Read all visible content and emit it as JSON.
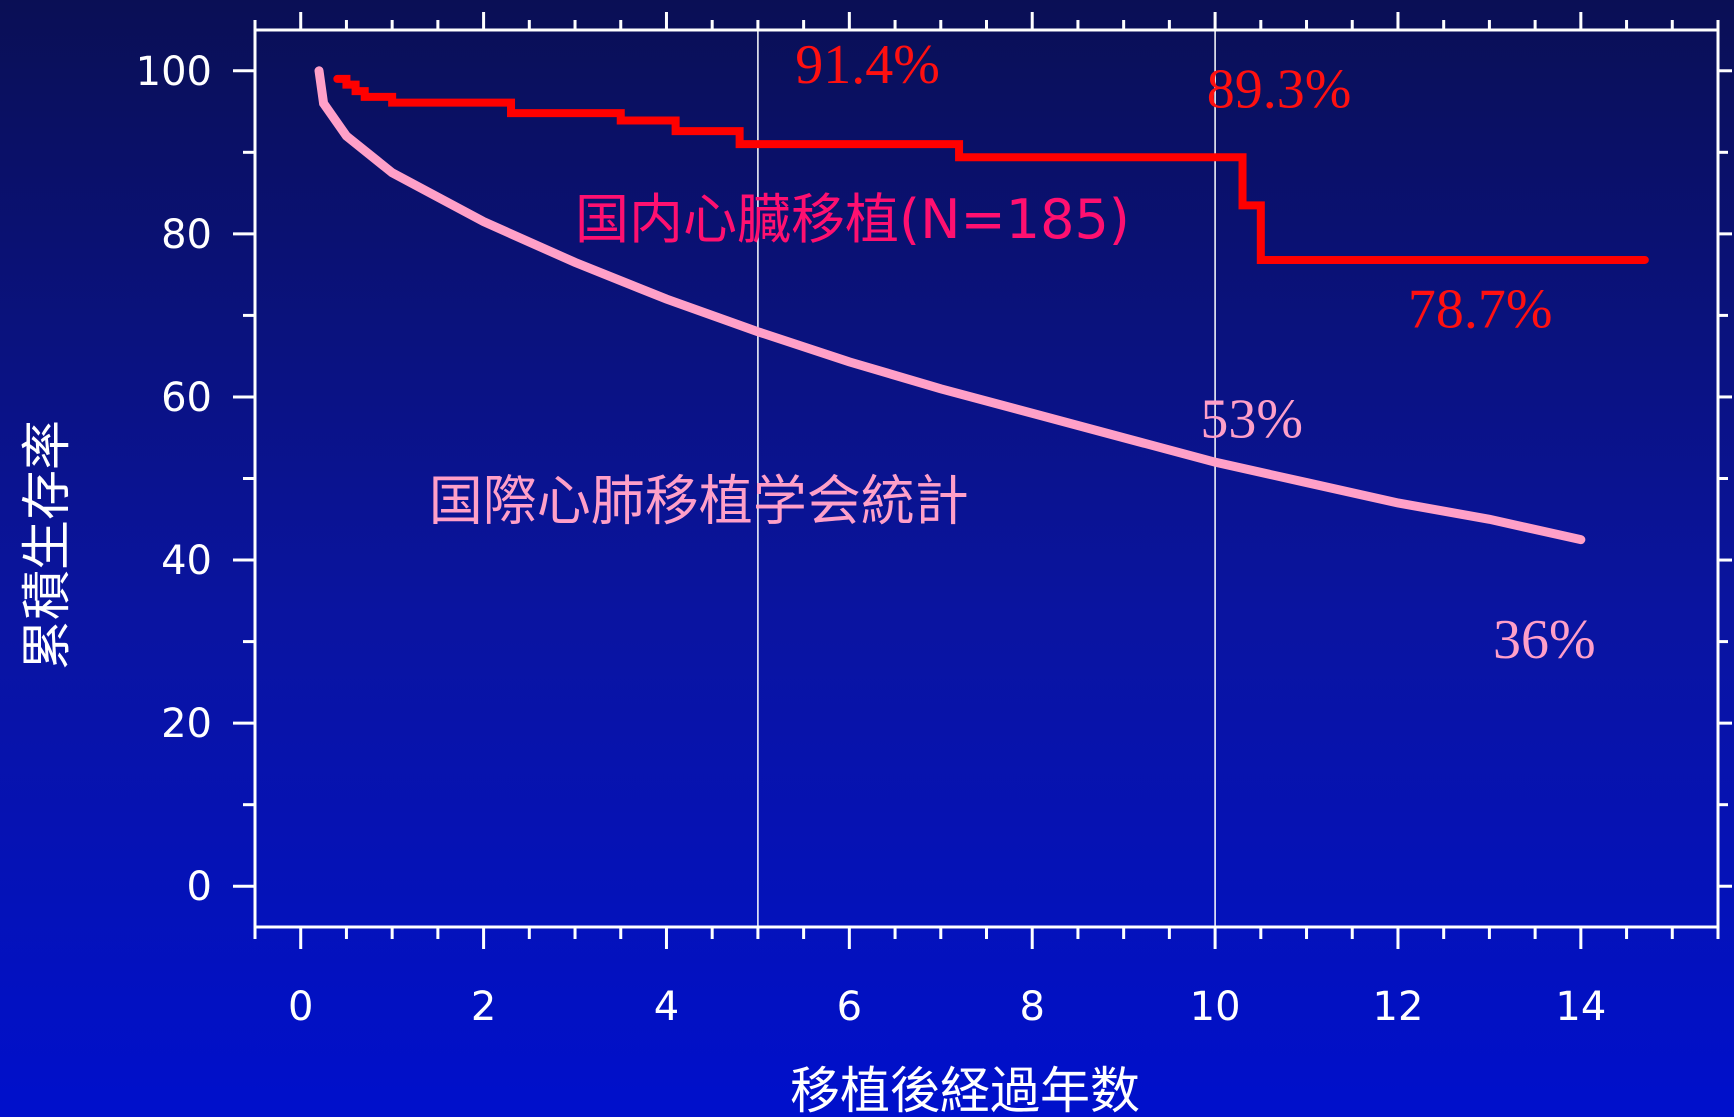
{
  "chart_data": {
    "type": "line",
    "xlabel": "移植後経過年数",
    "ylabel": "累積生存率",
    "xlim": [
      -0.5,
      15.5
    ],
    "ylim": [
      -5,
      105
    ],
    "x_ticks": [
      "0",
      "2",
      "4",
      "6",
      "8",
      "10",
      "12",
      "14"
    ],
    "y_ticks": [
      "0",
      "20",
      "40",
      "60",
      "80",
      "100"
    ],
    "reference_lines_x": [
      5,
      10
    ],
    "grid": false,
    "series": [
      {
        "name": "国内心臓移植(N=185)",
        "color": "#ff0000",
        "step": true,
        "points": [
          [
            0.4,
            99
          ],
          [
            0.5,
            98.3
          ],
          [
            0.6,
            97.5
          ],
          [
            0.7,
            96.8
          ],
          [
            1.0,
            96.1
          ],
          [
            2.3,
            94.8
          ],
          [
            3.5,
            93.9
          ],
          [
            4.1,
            92.6
          ],
          [
            4.8,
            91.0
          ],
          [
            7.2,
            89.4
          ],
          [
            10.3,
            83.5
          ],
          [
            10.5,
            76.8
          ],
          [
            14.7,
            76.8
          ]
        ]
      },
      {
        "name": "国際心肺移植学会統計",
        "color": "#ffa0c8",
        "step": false,
        "points": [
          [
            0.2,
            100
          ],
          [
            0.25,
            96
          ],
          [
            0.5,
            92
          ],
          [
            1.0,
            87.5
          ],
          [
            2.0,
            81.5
          ],
          [
            3.0,
            76.5
          ],
          [
            4.0,
            72
          ],
          [
            5.0,
            68
          ],
          [
            6.0,
            64.3
          ],
          [
            7.0,
            61
          ],
          [
            8.0,
            58
          ],
          [
            9.0,
            55
          ],
          [
            10.0,
            52
          ],
          [
            11.0,
            49.5
          ],
          [
            12.0,
            47
          ],
          [
            13.0,
            45
          ],
          [
            14.0,
            42.5
          ]
        ]
      }
    ],
    "annotations": [
      {
        "text": "91.4%",
        "x": 6.2,
        "y": 98.5,
        "color": "#ff1010"
      },
      {
        "text": "89.3%",
        "x": 10.7,
        "y": 95.5,
        "color": "#ff1010"
      },
      {
        "text": "78.7%",
        "x": 12.9,
        "y": 68.5,
        "color": "#ff1010"
      },
      {
        "text": "53%",
        "x": 10.4,
        "y": 55,
        "color": "#ff9fc8"
      },
      {
        "text": "36%",
        "x": 13.6,
        "y": 28,
        "color": "#ff9fc8"
      }
    ],
    "series_labels": [
      {
        "text": "国内心臓移植(N=185)",
        "x": 3.0,
        "y": 79.5,
        "color": "#ff1070"
      },
      {
        "text": "国際心肺移植学会統計",
        "x": 1.4,
        "y": 45,
        "color": "#ff9fc8"
      }
    ]
  }
}
